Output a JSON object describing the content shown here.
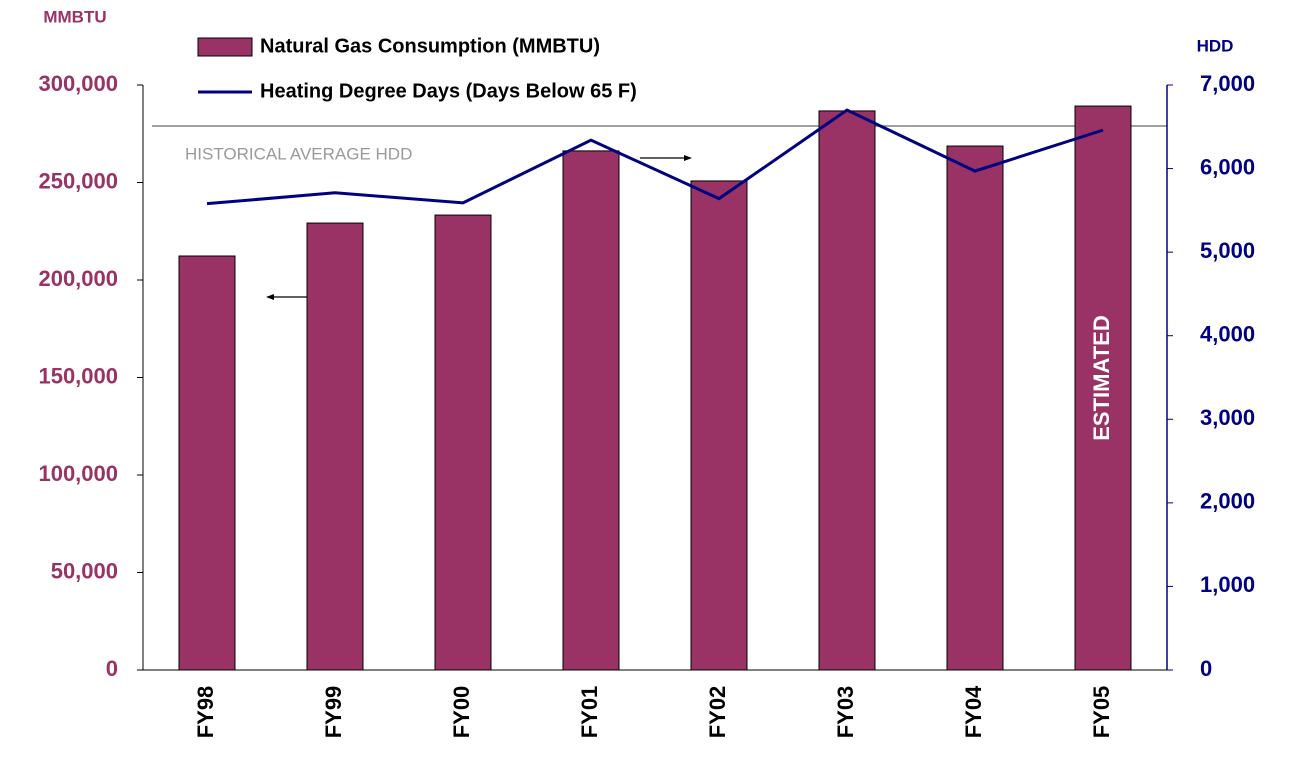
{
  "chart_data": {
    "type": "bar_line",
    "y_label": "MMBTU",
    "y2_label": "HDD",
    "categories": [
      "FY98",
      "FY99",
      "FY00",
      "FY01",
      "FY02",
      "FY03",
      "FY04",
      "FY05"
    ],
    "series": [
      {
        "name": "Natural Gas Consumption (MMBTU)",
        "type": "bar",
        "color": "#993366",
        "values": [
          212300,
          229200,
          233300,
          266200,
          250800,
          286700,
          268700,
          289200
        ]
      },
      {
        "name": "Heating Degree Days (Days Below 65 F)",
        "type": "line",
        "axis": "y2",
        "color": "#000080",
        "values": [
          5580,
          5710,
          5590,
          6340,
          5640,
          6700,
          5970,
          6460
        ]
      }
    ],
    "ylim": [
      0,
      300000
    ],
    "yticks": [
      0,
      {
        "value": 50000,
        "label": "50,000"
      },
      {
        "value": 100000,
        "label": "100,000"
      },
      {
        "value": 150000,
        "label": "150,000"
      },
      {
        "value": 200000,
        "label": "200,000"
      },
      {
        "value": 250000,
        "label": "250,000"
      },
      {
        "value": 300000,
        "label": "300,000"
      }
    ],
    "y2lim": [
      0,
      7000
    ],
    "y2ticks": [
      0,
      {
        "value": 1000,
        "label": "1,000"
      },
      {
        "value": 2000,
        "label": "2,000"
      },
      {
        "value": 3000,
        "label": "3,000"
      },
      {
        "value": 4000,
        "label": "4,000"
      },
      {
        "value": 5000,
        "label": "5,000"
      },
      {
        "value": 6000,
        "label": "6,000"
      },
      {
        "value": 7000,
        "label": "7,000"
      }
    ],
    "reference_line": {
      "value": 6510,
      "axis": "y2",
      "label": "HISTORICAL AVERAGE HDD",
      "color": "#808080"
    },
    "annotation": "ESTIMATED"
  }
}
